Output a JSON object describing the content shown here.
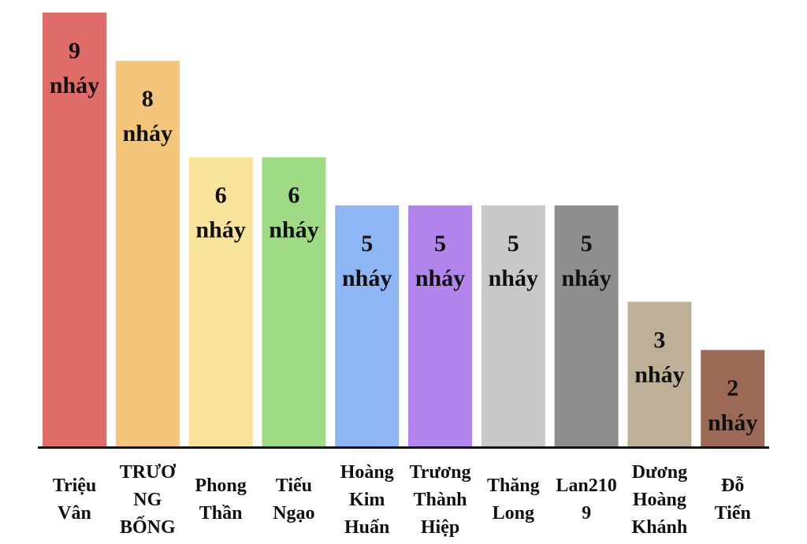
{
  "chart_data": {
    "type": "bar",
    "title": "",
    "xlabel": "",
    "ylabel": "",
    "ylim": [
      0,
      9
    ],
    "grid": false,
    "value_unit": "nháy",
    "categories": [
      [
        "Triệu",
        "Vân"
      ],
      [
        "TRƯƠ",
        "NG",
        "BỐNG"
      ],
      [
        "Phong",
        "Thần"
      ],
      [
        "Tiếu",
        "Ngạo"
      ],
      [
        "Hoàng",
        "Kim",
        "Huấn"
      ],
      [
        "Trương",
        "Thành",
        "Hiệp"
      ],
      [
        "Thăng",
        "Long"
      ],
      [
        "Lan210",
        "9"
      ],
      [
        "Dương",
        "Hoàng",
        "Khánh"
      ],
      [
        "Đỗ",
        "Tiến"
      ]
    ],
    "values": [
      9,
      8,
      6,
      6,
      5,
      5,
      5,
      5,
      3,
      2
    ],
    "data_labels": [
      [
        "9",
        "nháy"
      ],
      [
        "8",
        "nháy"
      ],
      [
        "6",
        "nháy"
      ],
      [
        "6",
        "nháy"
      ],
      [
        "5",
        "nháy"
      ],
      [
        "5",
        "nháy"
      ],
      [
        "5",
        "nháy"
      ],
      [
        "5",
        "nháy"
      ],
      [
        "3",
        "nháy"
      ],
      [
        "2",
        "nháy"
      ]
    ],
    "colors": [
      "#e06c69",
      "#f3c679",
      "#f8e39a",
      "#9fda84",
      "#8fb6f4",
      "#b185ec",
      "#c8c8c8",
      "#8e8e8e",
      "#bdb096",
      "#9a6a56"
    ],
    "axis_color": "#111111"
  }
}
